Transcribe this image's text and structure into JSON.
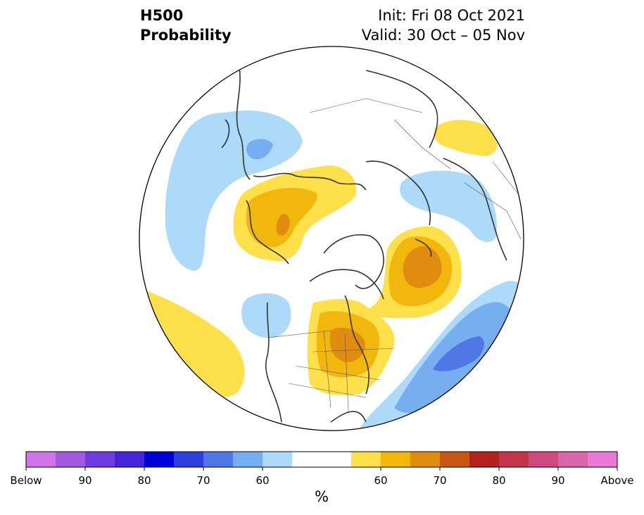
{
  "header": {
    "title_line1": "H500",
    "title_line2": "Probability",
    "init": "Init: Fri 08 Oct 2021",
    "valid": "Valid: 30 Oct – 05 Nov"
  },
  "colorbar": {
    "colors": [
      "#d373e8",
      "#a05ae0",
      "#6e3de0",
      "#4426d8",
      "#0000d8",
      "#2f3fde",
      "#4f77e6",
      "#77aef0",
      "#acdaf8",
      "#ffffff",
      "#ffffff",
      "#fee04b",
      "#f1b70d",
      "#e08c11",
      "#c95615",
      "#b2221f",
      "#c4344b",
      "#d04a7f",
      "#d965ab",
      "#e978d7"
    ],
    "tick_labels": [
      "Below",
      "90",
      "80",
      "70",
      "60",
      "60",
      "70",
      "80",
      "90",
      "Above"
    ],
    "units": "%"
  },
  "map": {
    "projection": "north-polar-stereographic",
    "anomalies": [
      {
        "region": "north-pacific-aleutians",
        "category": "below",
        "level": "50-60"
      },
      {
        "region": "northeast-siberia",
        "category": "below",
        "level": "60-70"
      },
      {
        "region": "alaska-yukon-to-chukotka",
        "category": "above",
        "level": "60-70"
      },
      {
        "region": "eastern-canada-great-lakes",
        "category": "above",
        "level": "60-70"
      },
      {
        "region": "greenland-iceland-norwegian-sea",
        "category": "above",
        "level": "70-80"
      },
      {
        "region": "north-atlantic-azores",
        "category": "below",
        "level": "70-80"
      },
      {
        "region": "western-russia-scandinavia",
        "category": "below",
        "level": "50-60"
      },
      {
        "region": "kazakhstan-west-asia",
        "category": "above",
        "level": "50-60"
      },
      {
        "region": "hawaii-subtropical-pacific",
        "category": "above",
        "level": "50-60"
      },
      {
        "region": "british-columbia-coast",
        "category": "below",
        "level": "50-60"
      }
    ]
  }
}
